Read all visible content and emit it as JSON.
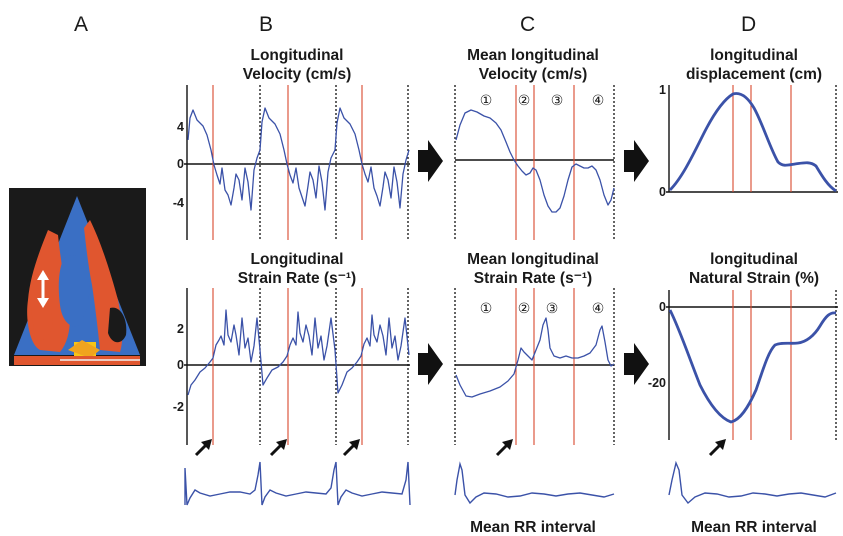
{
  "panels": {
    "a": {
      "letter": "A"
    },
    "b": {
      "letter": "B"
    },
    "c": {
      "letter": "C"
    },
    "d": {
      "letter": "D"
    }
  },
  "titles": {
    "b_velocity_1": "Longitudinal",
    "b_velocity_2": "Velocity (cm/s)",
    "b_strain_1": "Longitudinal",
    "b_strain_2": "Strain Rate (s⁻¹)",
    "c_velocity_1": "Mean longitudinal",
    "c_velocity_2": "Velocity (cm/s)",
    "c_strain_1": "Mean longitudinal",
    "c_strain_2": "Strain Rate (s⁻¹)",
    "d_displacement_1": "longitudinal",
    "d_displacement_2": "displacement (cm)",
    "d_strain_1": "longitudinal",
    "d_strain_2": "Natural Strain (%)"
  },
  "ticks": {
    "b_velocity": [
      "4",
      "0",
      "-4"
    ],
    "b_strain": [
      "2",
      "0",
      "-2"
    ],
    "d_displacement": [
      "1",
      "0"
    ],
    "d_strain": [
      "0",
      "-20"
    ]
  },
  "phase_markers": [
    "①",
    "②",
    "③",
    "④"
  ],
  "footers": {
    "c": "Mean RR interval",
    "d": "Mean RR interval"
  },
  "colors": {
    "trace": "#3b52a8",
    "event_line": "#d9492e",
    "arrow": "#111111"
  },
  "icons": [
    "echo-image",
    "right-arrow-icon",
    "diagonal-arrow-icon",
    "double-arrow-icon"
  ]
}
